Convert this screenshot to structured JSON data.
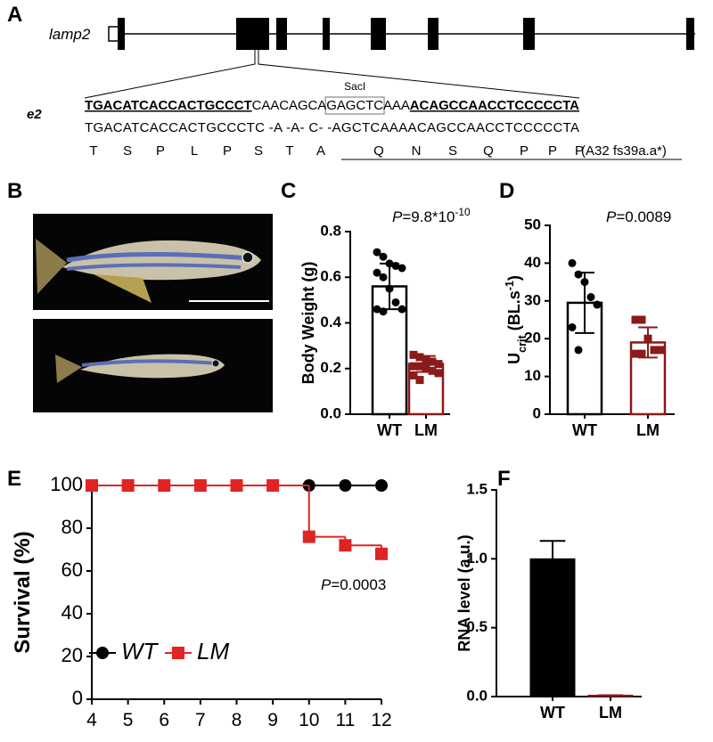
{
  "panel_a": {
    "label": "A",
    "gene": "lamp2",
    "exon_label": "e2",
    "site": "SacI",
    "wt_seq": [
      "TGACATCACCACTGCCCT",
      "CAACAGCA",
      "GAGCTC",
      "AAA",
      "ACAGCCAACCTCCCCCTA"
    ],
    "mutant_seq": "TGACATCACCACTGCCCTC -A -A- C- -AGCTCAAAACAGCCAACCTCCCCCTA",
    "aa_wt": [
      "T",
      "S",
      "P",
      "L",
      "P",
      "S",
      "T",
      "A"
    ],
    "aa_frameshift": [
      "Q",
      "N",
      "S",
      "Q",
      "P",
      "P",
      "P",
      "(A32 fs39a.a*)"
    ]
  },
  "panel_b": {
    "label": "B"
  },
  "chart_data": [
    {
      "type": "bar",
      "label": "C",
      "ylabel": [
        {
          "text": "Body Weight (g)"
        }
      ],
      "annotation": [
        {
          "text": "P",
          "style": "italic"
        },
        {
          "text": "=9.8*10"
        },
        {
          "text": "-10",
          "shift": "super"
        }
      ],
      "categories": [
        "WT",
        "LM"
      ],
      "values": [
        0.56,
        0.22
      ],
      "errors": [
        0.1,
        0.035
      ],
      "points": [
        [
          0.71,
          0.69,
          0.66,
          0.65,
          0.64,
          0.62,
          0.6,
          0.55,
          0.49,
          0.46,
          0.46,
          0.45
        ],
        [
          0.26,
          0.25,
          0.24,
          0.23,
          0.22,
          0.21,
          0.21,
          0.2,
          0.19,
          0.18,
          0.17,
          0.15
        ]
      ],
      "colors": [
        "#000000",
        "#8b1a1a"
      ],
      "ylim": [
        0,
        0.8
      ],
      "yticks": [
        {
          "value": 0,
          "label": "0.0"
        },
        0.2,
        0.4,
        0.6,
        0.8
      ]
    },
    {
      "type": "bar",
      "label": "D",
      "ylabel": [
        {
          "text": "U"
        },
        {
          "text": "crit",
          "shift": "sub"
        },
        {
          "text": " (BL.s"
        },
        {
          "text": "-1",
          "shift": "super"
        },
        {
          "text": ")"
        }
      ],
      "annotation": [
        {
          "text": "P",
          "style": "italic"
        },
        {
          "text": "=0.0089"
        }
      ],
      "categories": [
        "WT",
        "LM"
      ],
      "values": [
        29.5,
        19
      ],
      "errors": [
        8,
        4
      ],
      "points": [
        [
          40,
          37,
          35,
          31,
          29,
          23,
          17
        ],
        [
          25,
          25,
          20,
          17,
          17,
          16,
          16
        ]
      ],
      "colors": [
        "#000000",
        "#8b1a1a"
      ],
      "ylim": [
        0,
        50
      ],
      "yticks": [
        0,
        10,
        20,
        30,
        40,
        50
      ]
    },
    {
      "type": "line",
      "step": true,
      "label": "E",
      "ylabel": [
        {
          "text": "Survival (%)"
        }
      ],
      "annotation": [
        {
          "text": "P",
          "style": "italic"
        },
        {
          "text": "=0.0003"
        }
      ],
      "x": [
        4,
        5,
        6,
        7,
        8,
        9,
        10,
        11,
        12
      ],
      "xlim": [
        4,
        12
      ],
      "xticks": [
        4,
        5,
        6,
        7,
        8,
        9,
        10,
        11,
        12
      ],
      "ylim": [
        0,
        100
      ],
      "yticks": [
        0,
        20,
        40,
        60,
        80,
        100
      ],
      "legend": "lower left",
      "series": [
        {
          "name": "WT",
          "color": "#000000",
          "marker": "circle",
          "values": [
            100,
            100,
            100,
            100,
            100,
            100,
            100,
            100,
            100
          ]
        },
        {
          "name": "LM",
          "color": "#e02424",
          "marker": "square",
          "values": [
            100,
            100,
            100,
            100,
            100,
            100,
            76,
            72,
            68
          ]
        }
      ]
    },
    {
      "type": "bar",
      "label": "F",
      "ylabel": [
        {
          "text": "RNA level (a.u.)"
        }
      ],
      "categories": [
        "WT",
        "LM"
      ],
      "values": [
        1.0,
        0.01
      ],
      "errors": [
        0.13,
        0
      ],
      "colors": [
        "#000000",
        "#8b1a1a"
      ],
      "filled": true,
      "ylim": [
        0,
        1.5
      ],
      "yticks": [
        {
          "value": 0,
          "label": "0.0"
        },
        0.5,
        {
          "value": 1,
          "label": "1.0"
        },
        1.5
      ]
    }
  ]
}
